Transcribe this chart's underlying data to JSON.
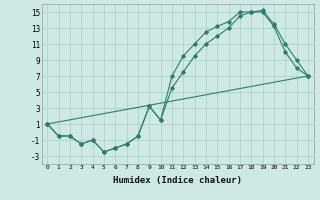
{
  "title": "",
  "xlabel": "Humidex (Indice chaleur)",
  "ylabel": "",
  "background_color": "#cde8e5",
  "line_color": "#2d7d6f",
  "grid_color": "#aacfcc",
  "xlim": [
    -0.5,
    23.5
  ],
  "ylim": [
    -4,
    16
  ],
  "xticks": [
    0,
    1,
    2,
    3,
    4,
    5,
    6,
    7,
    8,
    9,
    10,
    11,
    12,
    13,
    14,
    15,
    16,
    17,
    18,
    19,
    20,
    21,
    22,
    23
  ],
  "yticks": [
    -3,
    -1,
    1,
    3,
    5,
    7,
    9,
    11,
    13,
    15
  ],
  "series1_x": [
    0,
    1,
    2,
    3,
    4,
    5,
    6,
    7,
    8,
    9,
    10,
    11,
    12,
    13,
    14,
    15,
    16,
    17,
    18,
    19,
    20,
    21,
    22,
    23
  ],
  "series1_y": [
    1,
    -0.5,
    -0.5,
    -1.5,
    -1,
    -2.5,
    -2,
    -1.5,
    -0.5,
    3.2,
    1.5,
    7,
    9.5,
    11,
    12.5,
    13.2,
    13.8,
    15,
    15,
    15,
    13.2,
    10,
    8,
    7
  ],
  "series2_x": [
    0,
    1,
    2,
    3,
    4,
    5,
    6,
    7,
    8,
    9,
    10,
    11,
    12,
    13,
    14,
    15,
    16,
    17,
    18,
    19,
    20,
    21,
    22,
    23
  ],
  "series2_y": [
    1,
    -0.5,
    -0.5,
    -1.5,
    -1,
    -2.5,
    -2,
    -1.5,
    -0.5,
    3.2,
    1.5,
    5.5,
    7.5,
    9.5,
    11,
    12,
    13,
    14.5,
    15,
    15.2,
    13.5,
    11,
    9,
    7
  ],
  "series3_x": [
    0,
    23
  ],
  "series3_y": [
    1,
    7
  ]
}
